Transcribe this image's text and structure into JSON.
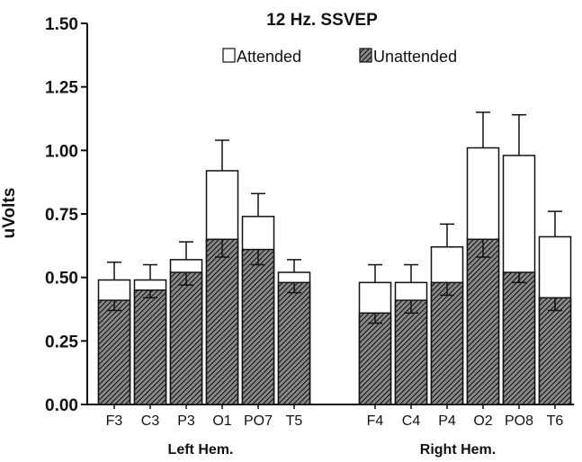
{
  "chart_data": {
    "type": "bar",
    "title": "12 Hz.  SSVEP",
    "ylabel": "uVolts",
    "xlabel": "",
    "ylim": [
      0,
      1.5
    ],
    "yticks": [
      "0.00",
      "0.25",
      "0.50",
      "0.75",
      "1.00",
      "1.25",
      "1.50"
    ],
    "stacking": "overlay",
    "legend_position": "top",
    "groups": [
      {
        "label": "Left Hem.",
        "categories": [
          "F3",
          "C3",
          "P3",
          "O1",
          "PO7",
          "T5"
        ]
      },
      {
        "label": "Right Hem.",
        "categories": [
          "F4",
          "C4",
          "P4",
          "O2",
          "PO8",
          "T6"
        ]
      }
    ],
    "categories": [
      "F3",
      "C3",
      "P3",
      "O1",
      "PO7",
      "T5",
      "F4",
      "C4",
      "P4",
      "O2",
      "PO8",
      "T6"
    ],
    "series": [
      {
        "name": "Attended",
        "fill": "white",
        "values": [
          0.49,
          0.49,
          0.57,
          0.92,
          0.74,
          0.52,
          0.48,
          0.48,
          0.62,
          1.01,
          0.98,
          0.66
        ],
        "error_upper": [
          0.56,
          0.55,
          0.64,
          1.04,
          0.83,
          0.57,
          0.55,
          0.55,
          0.71,
          1.15,
          1.14,
          0.76
        ]
      },
      {
        "name": "Unattended",
        "fill": "hatched",
        "values": [
          0.41,
          0.45,
          0.52,
          0.65,
          0.61,
          0.48,
          0.36,
          0.41,
          0.48,
          0.65,
          0.52,
          0.42
        ],
        "error_lower": [
          0.37,
          0.42,
          0.47,
          0.58,
          0.55,
          0.44,
          0.32,
          0.36,
          0.43,
          0.58,
          0.48,
          0.37
        ]
      }
    ],
    "colors": {
      "ink": "#111111",
      "background": "#ffffff",
      "hatch_bg": "#8a8a8a"
    }
  }
}
